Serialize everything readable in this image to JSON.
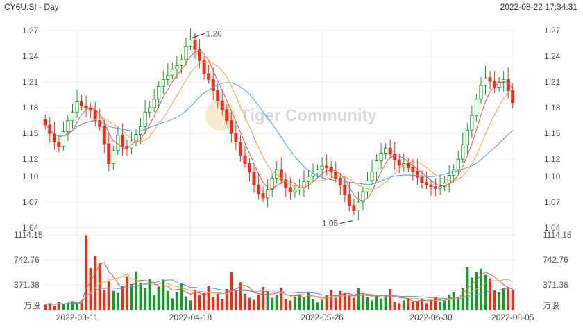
{
  "header": {
    "symbol": "CY6U.SI - Day",
    "timestamp": "2022-08-22 17:34:31"
  },
  "watermark": "Tiger Community",
  "colors": {
    "up": "#1a9a2e",
    "down": "#e8331c",
    "ma5": "#e8534a",
    "ma10": "#f0a040",
    "ma20": "#4aa0e0",
    "grid": "#ececec"
  },
  "chart_data": [
    {
      "type": "candlestick",
      "title": "",
      "y_ticks": [
        "1.27",
        "1.24",
        "1.21",
        "1.18",
        "1.15",
        "1.12",
        "1.10",
        "1.07",
        "1.04"
      ],
      "ylim": [
        1.04,
        1.27
      ],
      "x_ticks": [
        "2022-03-11",
        "2022-04-18",
        "2022-05-26",
        "2022-06-30",
        "2022-08-05"
      ],
      "annotations": [
        {
          "text": "1.26",
          "value": 1.26
        },
        {
          "text": "1.05",
          "value": 1.05
        }
      ],
      "close": [
        1.16,
        1.15,
        1.14,
        1.135,
        1.152,
        1.165,
        1.175,
        1.187,
        1.182,
        1.18,
        1.177,
        1.165,
        1.158,
        1.138,
        1.115,
        1.13,
        1.148,
        1.135,
        1.133,
        1.14,
        1.149,
        1.158,
        1.175,
        1.18,
        1.19,
        1.205,
        1.213,
        1.218,
        1.225,
        1.229,
        1.236,
        1.252,
        1.259,
        1.248,
        1.235,
        1.22,
        1.213,
        1.2,
        1.188,
        1.178,
        1.165,
        1.15,
        1.14,
        1.124,
        1.115,
        1.105,
        1.09,
        1.08,
        1.075,
        1.085,
        1.098,
        1.108,
        1.096,
        1.087,
        1.082,
        1.084,
        1.087,
        1.094,
        1.1,
        1.103,
        1.108,
        1.112,
        1.11,
        1.105,
        1.098,
        1.09,
        1.079,
        1.066,
        1.06,
        1.07,
        1.082,
        1.095,
        1.105,
        1.118,
        1.127,
        1.133,
        1.126,
        1.119,
        1.113,
        1.115,
        1.11,
        1.106,
        1.099,
        1.093,
        1.09,
        1.088,
        1.086,
        1.088,
        1.092,
        1.101,
        1.108,
        1.12,
        1.137,
        1.154,
        1.171,
        1.19,
        1.206,
        1.215,
        1.211,
        1.204,
        1.21,
        1.213,
        1.2,
        1.186
      ],
      "volume_ticks": [
        "1114.15",
        "742.76",
        "371.38"
      ],
      "volume_unit": "万股",
      "volume": [
        80,
        100,
        60,
        120,
        90,
        110,
        130,
        100,
        140,
        1110,
        620,
        800,
        690,
        300,
        420,
        280,
        250,
        350,
        500,
        380,
        570,
        400,
        320,
        460,
        220,
        340,
        450,
        280,
        170,
        260,
        390,
        200,
        140,
        300,
        220,
        250,
        360,
        190,
        240,
        160,
        310,
        560,
        290,
        410,
        240,
        180,
        150,
        230,
        340,
        280,
        180,
        220,
        330,
        160,
        140,
        200,
        230,
        190,
        260,
        160,
        110,
        150,
        220,
        300,
        180,
        280,
        240,
        210,
        180,
        320,
        250,
        190,
        140,
        210,
        170,
        210,
        310,
        120,
        100,
        140,
        160,
        120,
        130,
        170,
        100,
        150,
        190,
        120,
        140,
        230,
        260,
        180,
        320,
        630,
        480,
        560,
        610,
        520,
        470,
        290,
        260,
        320,
        340,
        300
      ]
    }
  ]
}
